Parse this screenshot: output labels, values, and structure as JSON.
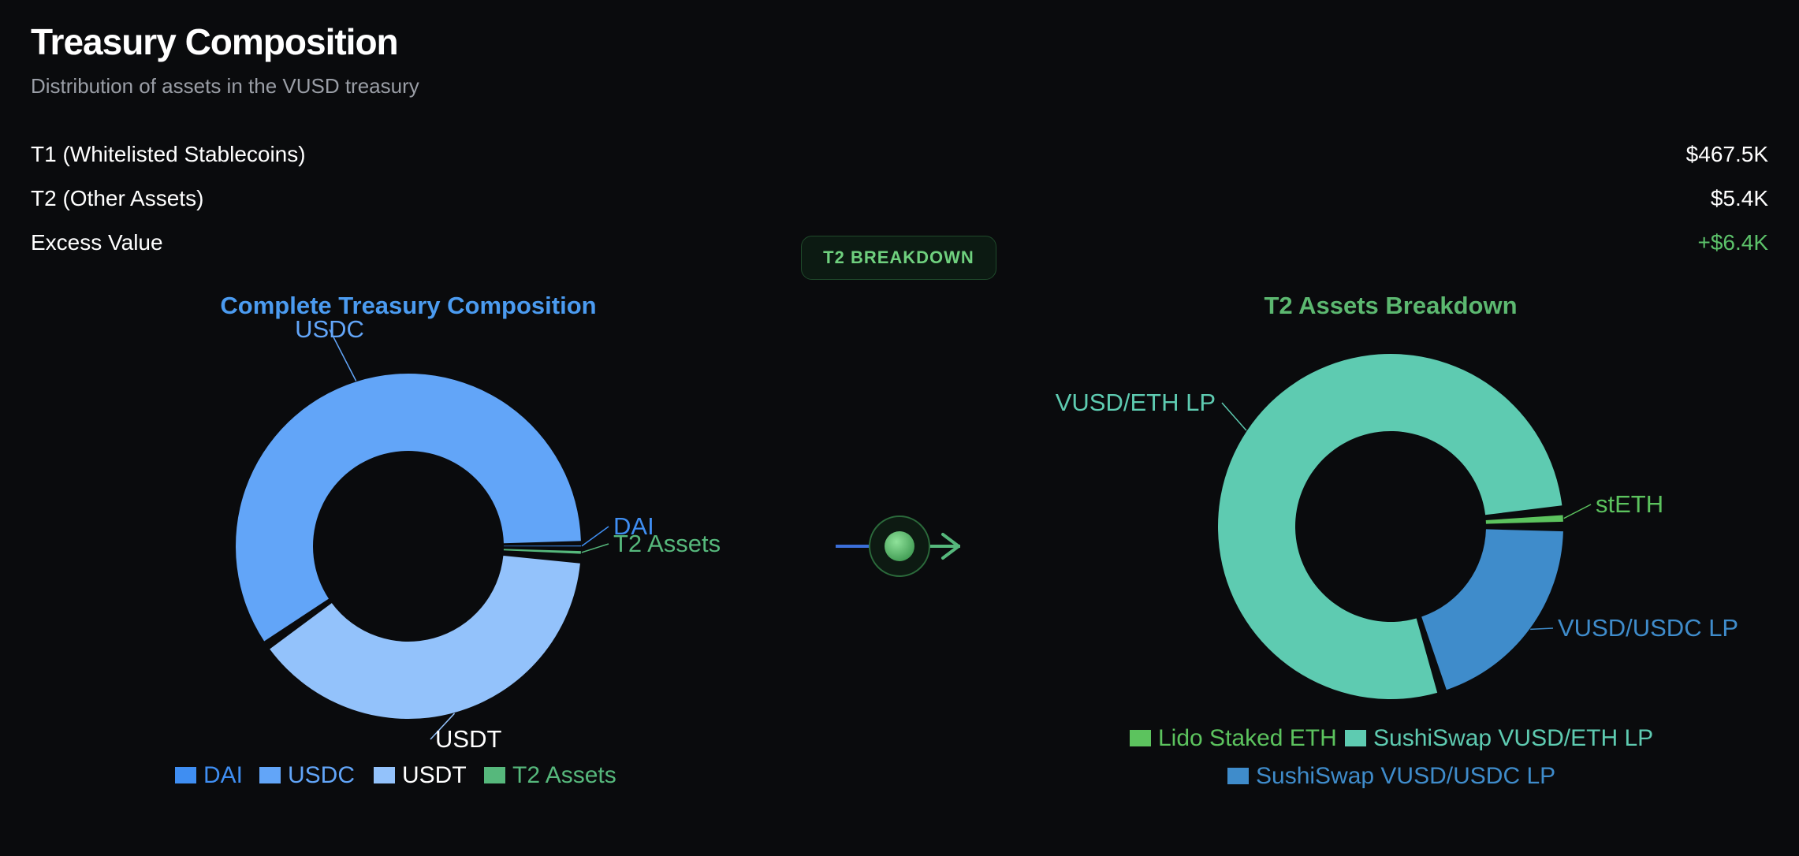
{
  "header": {
    "title": "Treasury Composition",
    "subtitle": "Distribution of assets in the VUSD treasury"
  },
  "stats": [
    {
      "label": "T1 (Whitelisted Stablecoins)",
      "value": "$467.5K"
    },
    {
      "label": "T2 (Other Assets)",
      "value": "$5.4K"
    },
    {
      "label": "Excess Value",
      "value": "+$6.4K"
    }
  ],
  "breakdown_button": {
    "label": "T2 BREAKDOWN"
  },
  "colors": {
    "dai": "#3f8ef2",
    "usdc": "#62a5f8",
    "usdt": "#93c2fb",
    "t2": "#56b87c",
    "lido": "#5cc35e",
    "vusd_eth_lp": "#5ecbb1",
    "vusd_usdc_lp": "#3f8ccb",
    "positive": "#5cc26a"
  },
  "icons": {
    "flow": "arrow-right-with-node-icon"
  },
  "chart_data": [
    {
      "type": "pie",
      "donut": true,
      "title": "Complete Treasury Composition",
      "categories": [
        "DAI",
        "USDC",
        "USDT",
        "T2 Assets"
      ],
      "values": [
        0.2,
        282.2,
        185.1,
        5.4
      ],
      "unit": "$K",
      "start_angle_deg": 0,
      "direction": "counterclockwise",
      "legend": "bottom",
      "legend_entries": [
        "DAI",
        "USDC",
        "USDT",
        "T2 Assets"
      ],
      "slice_labels": [
        "DAI",
        "USDC",
        "USDT",
        "T2 Assets"
      ],
      "label_colors": [
        "#3f8ef2",
        "#62a5f8",
        "#ffffff",
        "#56b87c"
      ],
      "color_keys": [
        "dai",
        "usdc",
        "usdt",
        "t2"
      ],
      "title_color": "#4b9bf0"
    },
    {
      "type": "pie",
      "donut": true,
      "title": "T2 Assets Breakdown",
      "categories": [
        "stETH",
        "VUSD/ETH LP",
        "VUSD/USDC LP"
      ],
      "values": [
        1.5,
        78.3,
        20.2
      ],
      "unit": "%",
      "start_angle_deg": 0,
      "direction": "counterclockwise",
      "legend": "bottom",
      "legend_entries": [
        "Lido Staked ETH",
        "SushiSwap VUSD/ETH LP",
        "SushiSwap VUSD/USDC LP"
      ],
      "slice_labels": [
        "stETH",
        "VUSD/ETH LP",
        "VUSD/USDC LP"
      ],
      "label_colors": [
        "#5cc35e",
        "#5ecbb1",
        "#3f8ccb"
      ],
      "color_keys": [
        "lido",
        "vusd_eth_lp",
        "vusd_usdc_lp"
      ],
      "title_color": "#5cb870"
    }
  ]
}
